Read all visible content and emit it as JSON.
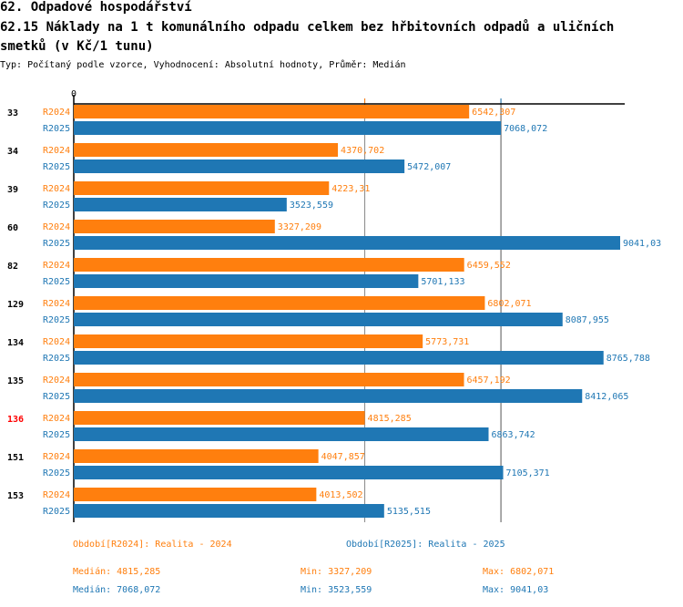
{
  "header": {
    "section": "62. Odpadové hospodářství",
    "title_line1": "62.15 Náklady na 1 t komunálního odpadu celkem bez hřbitovních odpadů a uličních",
    "title_line2": "smetků (v Kč/1 tunu)",
    "subtitle": "Typ: Počítaný podle vzorce, Vyhodnocení: Absolutní hodnoty, Průměr: Medián"
  },
  "chart_data": {
    "type": "bar",
    "orientation": "horizontal",
    "axis_label_zero": "0",
    "xlim": [
      0,
      9041.03
    ],
    "categories": [
      "33",
      "34",
      "39",
      "60",
      "82",
      "129",
      "134",
      "135",
      "136",
      "151",
      "153"
    ],
    "highlight": "136",
    "series": [
      {
        "name": "R2024",
        "color": "#ff7f0e",
        "labels": [
          "6542,307",
          "4370,702",
          "4223,31",
          "3327,209",
          "6459,552",
          "6802,071",
          "5773,731",
          "6457,192",
          "4815,285",
          "4047,857",
          "4013,502"
        ],
        "values": [
          6542.307,
          4370.702,
          4223.31,
          3327.209,
          6459.552,
          6802.071,
          5773.731,
          6457.192,
          4815.285,
          4047.857,
          4013.502
        ],
        "median": 4815.285
      },
      {
        "name": "R2025",
        "color": "#1f77b4",
        "labels": [
          "7068,072",
          "5472,007",
          "3523,559",
          "9041,03",
          "5701,133",
          "8087,955",
          "8765,788",
          "8412,065",
          "6863,742",
          "7105,371",
          "5135,515"
        ],
        "values": [
          7068.072,
          5472.007,
          3523.559,
          9041.03,
          5701.133,
          8087.955,
          8765.788,
          8412.065,
          6863.742,
          7105.371,
          5135.515
        ],
        "median": 7068.072
      }
    ]
  },
  "legend": {
    "r2024": "Období[R2024]: Realita - 2024",
    "r2025": "Období[R2025]: Realita - 2025"
  },
  "stats": {
    "r2024": {
      "median": "Medián: 4815,285",
      "min": "Min: 3327,209",
      "max": "Max: 6802,071"
    },
    "r2025": {
      "median": "Medián: 7068,072",
      "min": "Min: 3523,559",
      "max": "Max: 9041,03"
    }
  }
}
